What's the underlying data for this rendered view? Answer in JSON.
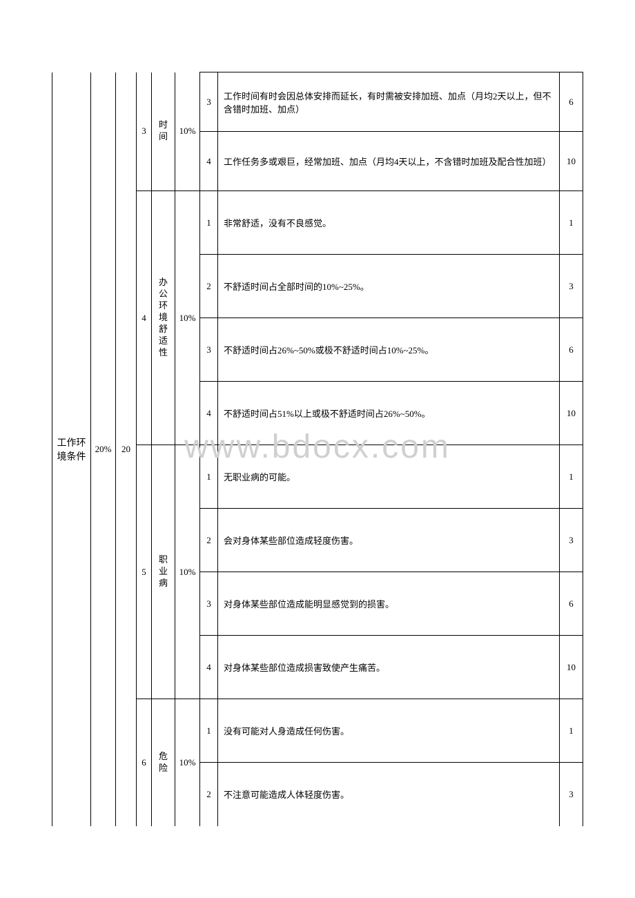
{
  "watermark": "www.bdocx.com",
  "category": {
    "name": "工作环境条件",
    "percent": "20%",
    "max_score": "20"
  },
  "factors": [
    {
      "index": "3",
      "name": "时间",
      "weight": "10%",
      "levels": [
        {
          "level": "3",
          "desc": "工作时间有时会因总体安排而延长，有时需被安排加班、加点（月均2天以上，但不含错时加班、加点）",
          "score": "6"
        },
        {
          "level": "4",
          "desc": "工作任务多或艰巨，经常加班、加点（月均4天以上，不含错时加班及配合性加班）",
          "score": "10"
        }
      ]
    },
    {
      "index": "4",
      "name": "办公环境舒适性",
      "weight": "10%",
      "levels": [
        {
          "level": "1",
          "desc": "非常舒适，没有不良感觉。",
          "score": "1"
        },
        {
          "level": "2",
          "desc": "不舒适时间占全部时间的10%~25%。",
          "score": "3"
        },
        {
          "level": "3",
          "desc": "不舒适时间占26%~50%或极不舒适时间占10%~25%。",
          "score": "6"
        },
        {
          "level": "4",
          "desc": "不舒适时间占51%以上或极不舒适时间占26%~50%。",
          "score": "10"
        }
      ]
    },
    {
      "index": "5",
      "name": "职业病",
      "weight": "10%",
      "levels": [
        {
          "level": "1",
          "desc": "无职业病的可能。",
          "score": "1"
        },
        {
          "level": "2",
          "desc": "会对身体某些部位造成轻度伤害。",
          "score": "3"
        },
        {
          "level": "3",
          "desc": "对身体某些部位造成能明显感觉到的损害。",
          "score": "6"
        },
        {
          "level": "4",
          "desc": "对身体某些部位造成损害致使产生痛苦。",
          "score": "10"
        }
      ]
    },
    {
      "index": "6",
      "name": "危险",
      "weight": "10%",
      "levels": [
        {
          "level": "1",
          "desc": "没有可能对人身造成任何伤害。",
          "score": "1"
        },
        {
          "level": "2",
          "desc": "不注意可能造成人体轻度伤害。",
          "score": "3"
        }
      ]
    }
  ]
}
